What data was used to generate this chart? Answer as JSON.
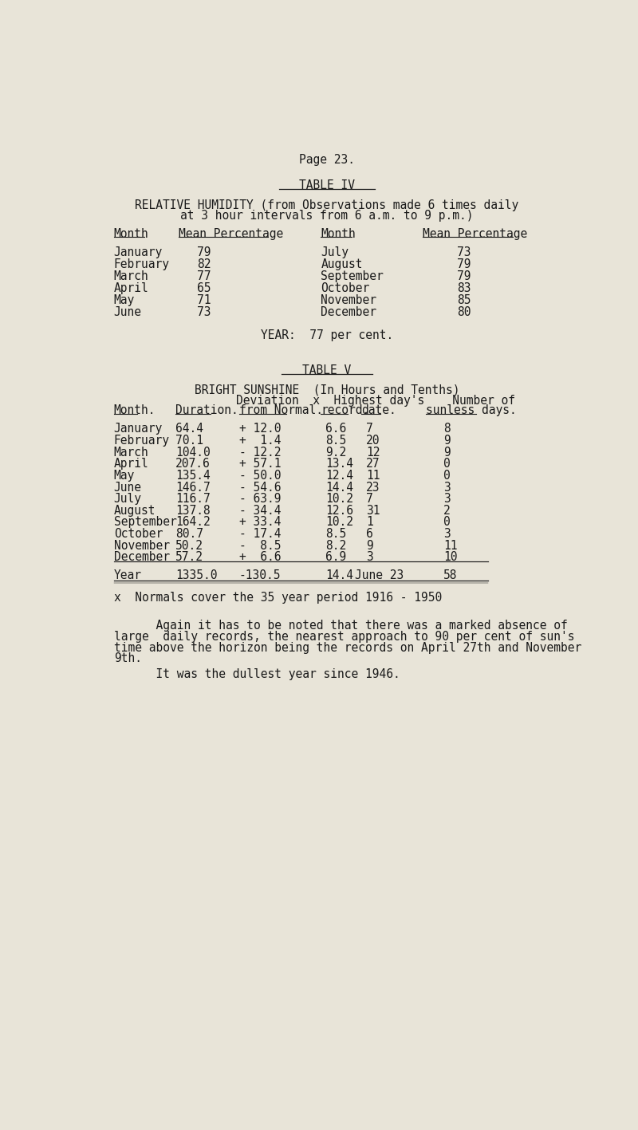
{
  "bg_color": "#e8e4d8",
  "text_color": "#1a1a1a",
  "page_header": "Page 23.",
  "table4_title": "TABLE IV",
  "table4_subtitle1": "RELATIVE HUMIDITY (from Observations made 6 times daily",
  "table4_subtitle2": "at 3 hour intervals from 6 a.m. to 9 p.m.)",
  "table4_left": [
    [
      "January",
      "79"
    ],
    [
      "February",
      "82"
    ],
    [
      "March",
      "77"
    ],
    [
      "April",
      "65"
    ],
    [
      "May",
      "71"
    ],
    [
      "June",
      "73"
    ]
  ],
  "table4_right": [
    [
      "July",
      "73"
    ],
    [
      "August",
      "79"
    ],
    [
      "September",
      "79"
    ],
    [
      "October",
      "83"
    ],
    [
      "November",
      "85"
    ],
    [
      "December",
      "80"
    ]
  ],
  "table4_year": "YEAR:  77 per cent.",
  "table5_title": "TABLE V",
  "table5_header1": "BRIGHT SUNSHINE  (In Hours and Tenths)",
  "table5_col_headers": [
    "Month.",
    "Duration.",
    "from Normal.",
    "record.",
    "date.",
    "sunless days."
  ],
  "table5_data": [
    [
      "January",
      "64.4",
      "+ 12.0",
      "6.6",
      "7",
      "8"
    ],
    [
      "February",
      "70.1",
      "+  1.4",
      "8.5",
      "20",
      "9"
    ],
    [
      "March",
      "104.0",
      "- 12.2",
      "9.2",
      "12",
      "9"
    ],
    [
      "April",
      "207.6",
      "+ 57.1",
      "13.4",
      "27",
      "0"
    ],
    [
      "May",
      "135.4",
      "- 50.0",
      "12.4",
      "11",
      "0"
    ],
    [
      "June",
      "146.7",
      "- 54.6",
      "14.4",
      "23",
      "3"
    ],
    [
      "July",
      "116.7",
      "- 63.9",
      "10.2",
      "7",
      "3"
    ],
    [
      "August",
      "137.8",
      "- 34.4",
      "12.6",
      "31",
      "2"
    ],
    [
      "September",
      "164.2",
      "+ 33.4",
      "10.2",
      "1",
      "0"
    ],
    [
      "October",
      "80.7",
      "- 17.4",
      "8.5",
      "6",
      "3"
    ],
    [
      "November",
      "50.2",
      "-  8.5",
      "8.2",
      "9",
      "11"
    ],
    [
      "December",
      "57.2",
      "+  6.6",
      "6.9",
      "3",
      "10"
    ]
  ],
  "table5_year_row": [
    "Year",
    "1335.0",
    "-130.5",
    "14.4",
    "June 23",
    "58"
  ],
  "footnote": "x  Normals cover the 35 year period 1916 - 1950",
  "para1_line1": "      Again it has to be noted that there was a marked absence of",
  "para1_line2": "large  daily records, the nearest approach to 90 per cent of sun's",
  "para1_line3": "time above the horizon being the records on April 27th and November",
  "para1_line4": "9th.",
  "para2": "      It was the dullest year since 1946."
}
